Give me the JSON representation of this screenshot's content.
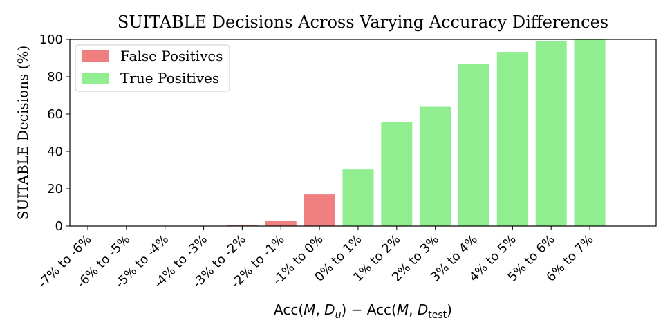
{
  "chart_data": {
    "type": "bar",
    "title": "SUITABLE Decisions Across Varying Accuracy Differences",
    "ylabel": "SUITABLE Decisions (%)",
    "xlabel_parts": {
      "acc1": "Acc(",
      "m1": "M",
      "sep1": ", ",
      "d1": "D",
      "sub1": "u",
      "close1": ")",
      "minus": " − ",
      "acc2": "Acc(",
      "m2": "M",
      "sep2": ", ",
      "d2": "D",
      "sub2": "test",
      "close2": ")"
    },
    "ylim": [
      0,
      100
    ],
    "yticks": [
      0,
      20,
      40,
      60,
      80,
      100
    ],
    "categories": [
      "-7% to -6%",
      "-6% to -5%",
      "-5% to -4%",
      "-4% to -3%",
      "-3% to -2%",
      "-2% to -1%",
      "-1% to 0%",
      "0% to 1%",
      "1% to 2%",
      "2% to 3%",
      "3% to 4%",
      "4% to 5%",
      "5% to 6%",
      "6% to 7%"
    ],
    "values": [
      0,
      0,
      0,
      0,
      0.6,
      2.6,
      17.0,
      30.3,
      55.8,
      63.9,
      86.8,
      93.3,
      99.0,
      100.0
    ],
    "series": [
      {
        "name": "False Positives",
        "color": "#f08080",
        "category_indices": [
          0,
          1,
          2,
          3,
          4,
          5,
          6
        ]
      },
      {
        "name": "True Positives",
        "color": "#90ee90",
        "category_indices": [
          7,
          8,
          9,
          10,
          11,
          12,
          13
        ]
      }
    ],
    "legend": {
      "placement": "top-left",
      "entries": [
        "False Positives",
        "True Positives"
      ]
    },
    "grid": false
  }
}
